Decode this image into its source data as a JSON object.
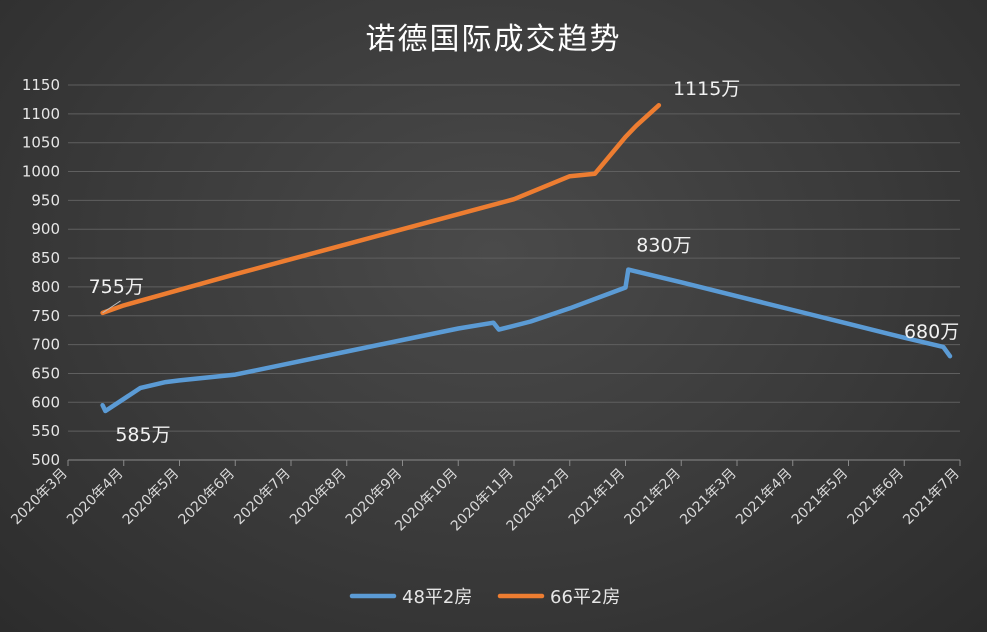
{
  "chart_data": {
    "type": "line",
    "title": "诺德国际成交趋势",
    "xlabel": "",
    "ylabel": "",
    "ylim": [
      500,
      1150
    ],
    "y_ticks": [
      500,
      550,
      600,
      650,
      700,
      750,
      800,
      850,
      900,
      950,
      1000,
      1050,
      1100,
      1150
    ],
    "x_ticks": [
      "2020年3月",
      "2020年4月",
      "2020年5月",
      "2020年6月",
      "2020年7月",
      "2020年8月",
      "2020年9月",
      "2020年10月",
      "2020年11月",
      "2020年12月",
      "2021年1月",
      "2021年2月",
      "2021年3月",
      "2021年4月",
      "2021年5月",
      "2021年6月",
      "2021年7月"
    ],
    "grid": true,
    "legend_position": "bottom",
    "series": [
      {
        "name": "48平2房",
        "color": "#5b9bd5",
        "points": [
          {
            "x": 0.62,
            "y": 595
          },
          {
            "x": 0.67,
            "y": 585
          },
          {
            "x": 1.3,
            "y": 625
          },
          {
            "x": 1.75,
            "y": 635
          },
          {
            "x": 2.0,
            "y": 638
          },
          {
            "x": 3.0,
            "y": 648
          },
          {
            "x": 4.0,
            "y": 668
          },
          {
            "x": 5.0,
            "y": 688
          },
          {
            "x": 6.0,
            "y": 708
          },
          {
            "x": 7.0,
            "y": 728
          },
          {
            "x": 7.63,
            "y": 738
          },
          {
            "x": 7.73,
            "y": 726
          },
          {
            "x": 8.3,
            "y": 740
          },
          {
            "x": 9.0,
            "y": 763
          },
          {
            "x": 10.0,
            "y": 799
          },
          {
            "x": 10.05,
            "y": 830
          },
          {
            "x": 11.0,
            "y": 808
          },
          {
            "x": 12.0,
            "y": 784
          },
          {
            "x": 13.0,
            "y": 760
          },
          {
            "x": 14.0,
            "y": 736
          },
          {
            "x": 15.0,
            "y": 712
          },
          {
            "x": 15.7,
            "y": 696
          },
          {
            "x": 15.82,
            "y": 680
          }
        ]
      },
      {
        "name": "66平2房",
        "color": "#ed7d31",
        "points": [
          {
            "x": 0.62,
            "y": 755
          },
          {
            "x": 1.0,
            "y": 768
          },
          {
            "x": 2.0,
            "y": 795
          },
          {
            "x": 3.0,
            "y": 822
          },
          {
            "x": 4.0,
            "y": 848
          },
          {
            "x": 5.0,
            "y": 874
          },
          {
            "x": 6.0,
            "y": 900
          },
          {
            "x": 7.0,
            "y": 926
          },
          {
            "x": 8.0,
            "y": 952
          },
          {
            "x": 8.5,
            "y": 972
          },
          {
            "x": 9.0,
            "y": 992
          },
          {
            "x": 9.45,
            "y": 996
          },
          {
            "x": 10.0,
            "y": 1060
          },
          {
            "x": 10.2,
            "y": 1080
          },
          {
            "x": 10.6,
            "y": 1115
          }
        ]
      }
    ],
    "annotations": [
      {
        "text": "755万",
        "series": 1,
        "point": 0
      },
      {
        "text": "1115万",
        "series": 1,
        "point": 14
      },
      {
        "text": "585万",
        "series": 0,
        "point": 1
      },
      {
        "text": "830万",
        "series": 0,
        "point": 15
      },
      {
        "text": "680万",
        "series": 0,
        "point": 22
      }
    ]
  }
}
